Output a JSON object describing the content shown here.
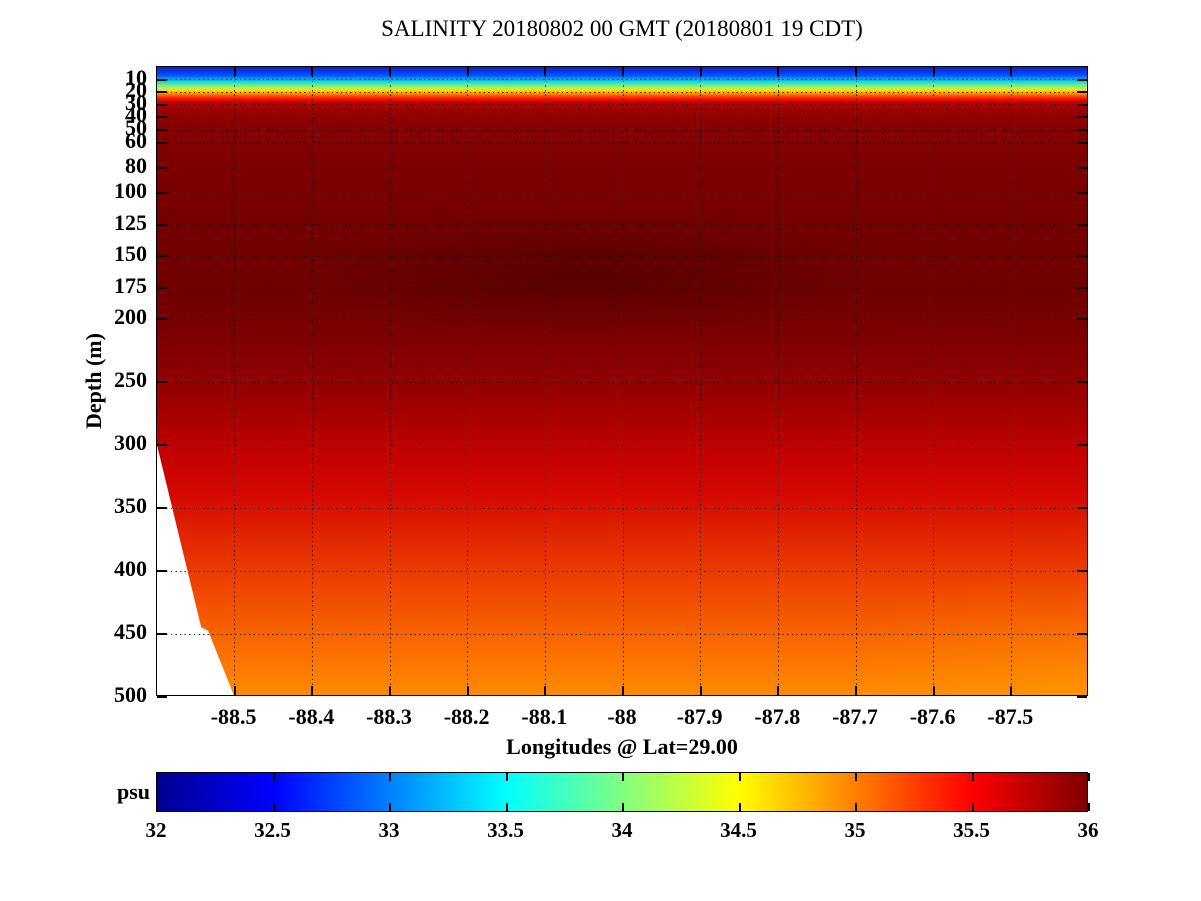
{
  "chart_data": {
    "type": "heatmap",
    "title": "SALINITY 20180802 00 GMT (20180801 19 CDT)",
    "xlabel": "Longitudes @ Lat=29.00",
    "ylabel": "Depth (m)",
    "colorbar": {
      "label": "psu",
      "range": [
        32,
        36
      ],
      "ticks": [
        32,
        32.5,
        33,
        33.5,
        34,
        34.5,
        35,
        35.5,
        36
      ],
      "colormap": "jet",
      "stops": [
        [
          32,
          "#00008f"
        ],
        [
          32.5,
          "#0000ff"
        ],
        [
          33,
          "#0080ff"
        ],
        [
          33.5,
          "#00ffff"
        ],
        [
          34,
          "#80ff80"
        ],
        [
          34.5,
          "#ffff00"
        ],
        [
          35,
          "#ff8000"
        ],
        [
          35.5,
          "#ff0000"
        ],
        [
          36,
          "#800000"
        ]
      ]
    },
    "xlim": [
      -88.6,
      -87.4
    ],
    "ylim": [
      0,
      500
    ],
    "y_axis_reversed": true,
    "grid": "dotted",
    "xticks": [
      -88.5,
      -88.4,
      -88.3,
      -88.2,
      -88.1,
      -88,
      -87.9,
      -87.8,
      -87.7,
      -87.6,
      -87.5
    ],
    "yticks": [
      10,
      20,
      30,
      40,
      50,
      60,
      80,
      100,
      125,
      150,
      175,
      200,
      250,
      300,
      350,
      400,
      450,
      500
    ],
    "field_gradient": [
      [
        0,
        "#0a22c4"
      ],
      [
        4,
        "#0b38e8"
      ],
      [
        7,
        "#0758ff"
      ],
      [
        9.5,
        "#00a4f4"
      ],
      [
        12,
        "#22dcc8"
      ],
      [
        14.5,
        "#66ee96"
      ],
      [
        17,
        "#c8ee44"
      ],
      [
        19,
        "#ffd400"
      ],
      [
        21,
        "#ff9400"
      ],
      [
        23,
        "#ff4c00"
      ],
      [
        25.5,
        "#ee1400"
      ],
      [
        28,
        "#c40000"
      ],
      [
        33,
        "#9e0000"
      ],
      [
        45,
        "#880000"
      ],
      [
        80,
        "#7d0000"
      ],
      [
        130,
        "#730000"
      ],
      [
        180,
        "#700000"
      ],
      [
        215,
        "#7c0000"
      ],
      [
        245,
        "#8e0000"
      ],
      [
        275,
        "#a40000"
      ],
      [
        305,
        "#c00000"
      ],
      [
        340,
        "#d40800"
      ],
      [
        375,
        "#e22600"
      ],
      [
        410,
        "#ee4200"
      ],
      [
        450,
        "#f86200"
      ],
      [
        475,
        "#fc7600"
      ],
      [
        500,
        "#ff8c00"
      ]
    ],
    "seafloor_polygon": [
      [
        -88.6,
        301
      ],
      [
        -88.543,
        446
      ],
      [
        -88.534,
        449
      ],
      [
        -88.501,
        500
      ],
      [
        -88.6,
        500
      ]
    ],
    "profile": {
      "description": "Approximate salinity vs depth read from the colors (psu)",
      "depths_m": [
        0,
        5,
        10,
        15,
        20,
        25,
        30,
        50,
        100,
        150,
        200,
        250,
        300,
        350,
        400,
        450,
        500
      ],
      "salinity_psu": [
        32.3,
        32.6,
        33.1,
        33.7,
        34.4,
        35.1,
        35.6,
        35.9,
        36.0,
        36.0,
        35.95,
        35.85,
        35.75,
        35.5,
        35.25,
        35.1,
        34.95
      ]
    }
  }
}
